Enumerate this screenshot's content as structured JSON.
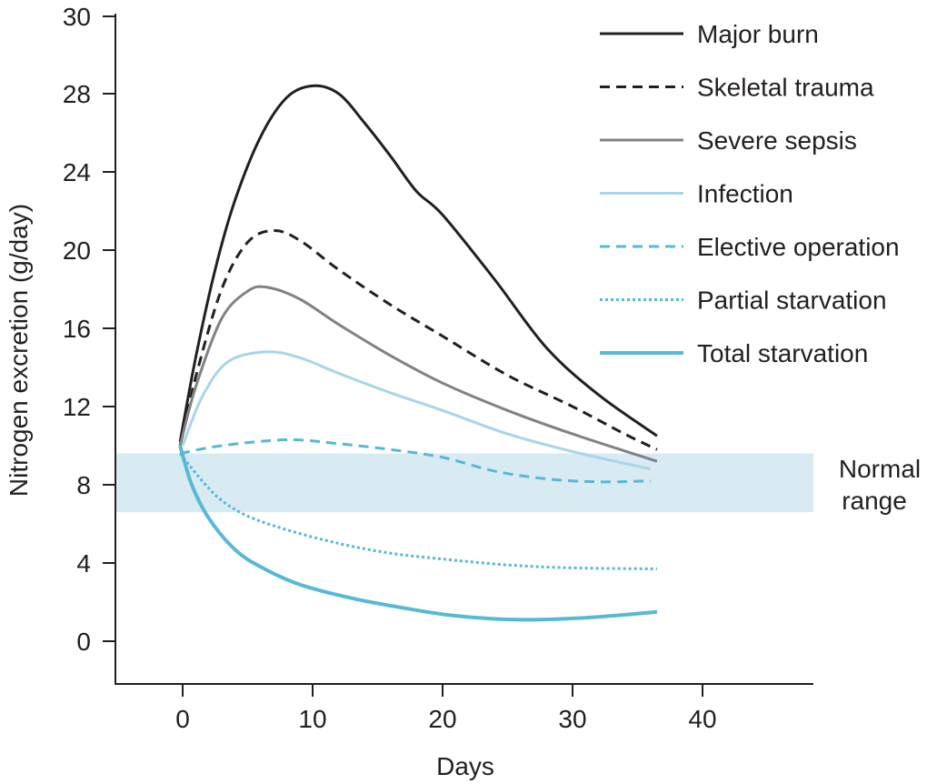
{
  "chart_data": {
    "type": "line",
    "title": "",
    "xlabel": "Days",
    "ylabel": "Nitrogen excretion (g/day)",
    "xlim": [
      -5.2,
      48.5
    ],
    "ylim": [
      0,
      30
    ],
    "xticks": [
      0,
      10,
      20,
      30,
      40
    ],
    "yticks": [
      0,
      4,
      8,
      12,
      16,
      20,
      24,
      28,
      30
    ],
    "grid": false,
    "legend_position": "top-right",
    "band": {
      "label_lines": [
        "Normal",
        "range"
      ],
      "y_range": [
        6.6,
        9.6
      ],
      "color": "#d8ebf3"
    },
    "series": [
      {
        "name": "Major burn",
        "color": "#231f20",
        "style": "solid",
        "width": 3,
        "points": [
          [
            -0.2,
            10.2
          ],
          [
            1,
            14.5
          ],
          [
            2.5,
            19
          ],
          [
            4,
            22.5
          ],
          [
            6,
            25.8
          ],
          [
            8,
            27.8
          ],
          [
            10,
            28.4
          ],
          [
            12,
            28
          ],
          [
            14,
            26.5
          ],
          [
            16,
            24.8
          ],
          [
            18,
            23
          ],
          [
            20,
            21.8
          ],
          [
            24,
            18.5
          ],
          [
            28,
            15
          ],
          [
            32,
            12.6
          ],
          [
            36.5,
            10.5
          ]
        ]
      },
      {
        "name": "Skeletal trauma",
        "color": "#231f20",
        "style": "dashed",
        "width": 3,
        "points": [
          [
            -0.2,
            10
          ],
          [
            1,
            13.5
          ],
          [
            3,
            18
          ],
          [
            5,
            20.4
          ],
          [
            7,
            21
          ],
          [
            9,
            20.5
          ],
          [
            12,
            19
          ],
          [
            16,
            17.2
          ],
          [
            20,
            15.6
          ],
          [
            25,
            13.6
          ],
          [
            30,
            12
          ],
          [
            34,
            10.6
          ],
          [
            36.5,
            9.8
          ]
        ]
      },
      {
        "name": "Severe sepsis",
        "color": "#808285",
        "style": "solid",
        "width": 3,
        "points": [
          [
            -0.2,
            10
          ],
          [
            1,
            13
          ],
          [
            3,
            16.5
          ],
          [
            5,
            17.9
          ],
          [
            6.5,
            18.1
          ],
          [
            9,
            17.5
          ],
          [
            12,
            16.2
          ],
          [
            16,
            14.6
          ],
          [
            20,
            13.2
          ],
          [
            25,
            11.8
          ],
          [
            30,
            10.6
          ],
          [
            36.5,
            9.2
          ]
        ]
      },
      {
        "name": "Infection",
        "color": "#a9d5e8",
        "style": "solid",
        "width": 3,
        "points": [
          [
            0,
            10
          ],
          [
            1.5,
            12.5
          ],
          [
            3.5,
            14.3
          ],
          [
            6.5,
            14.8
          ],
          [
            9,
            14.5
          ],
          [
            12,
            13.7
          ],
          [
            16,
            12.7
          ],
          [
            20,
            11.8
          ],
          [
            25,
            10.6
          ],
          [
            30,
            9.7
          ],
          [
            36,
            8.8
          ]
        ]
      },
      {
        "name": "Elective operation",
        "color": "#56b9d6",
        "style": "dashed",
        "width": 3,
        "points": [
          [
            -0.2,
            9.6
          ],
          [
            3,
            10
          ],
          [
            8,
            10.3
          ],
          [
            12,
            10.1
          ],
          [
            16,
            9.8
          ],
          [
            20,
            9.4
          ],
          [
            24,
            8.7
          ],
          [
            28,
            8.3
          ],
          [
            32,
            8.15
          ],
          [
            36,
            8.2
          ]
        ]
      },
      {
        "name": "Partial starvation",
        "color": "#56b9d6",
        "style": "dotted",
        "width": 3,
        "points": [
          [
            -0.2,
            9.6
          ],
          [
            1.5,
            8.2
          ],
          [
            3,
            7.2
          ],
          [
            5,
            6.4
          ],
          [
            8,
            5.7
          ],
          [
            12,
            5
          ],
          [
            16,
            4.5
          ],
          [
            20,
            4.2
          ],
          [
            25,
            3.9
          ],
          [
            30,
            3.75
          ],
          [
            36.5,
            3.7
          ]
        ]
      },
      {
        "name": "Total starvation",
        "color": "#56b9d6",
        "style": "solid",
        "width": 4,
        "points": [
          [
            -0.2,
            10
          ],
          [
            0.7,
            8
          ],
          [
            2,
            6.3
          ],
          [
            4,
            4.7
          ],
          [
            6,
            3.8
          ],
          [
            9,
            2.9
          ],
          [
            13,
            2.2
          ],
          [
            17,
            1.7
          ],
          [
            21,
            1.3
          ],
          [
            26,
            1.1
          ],
          [
            31,
            1.2
          ],
          [
            36.5,
            1.5
          ]
        ]
      }
    ]
  }
}
